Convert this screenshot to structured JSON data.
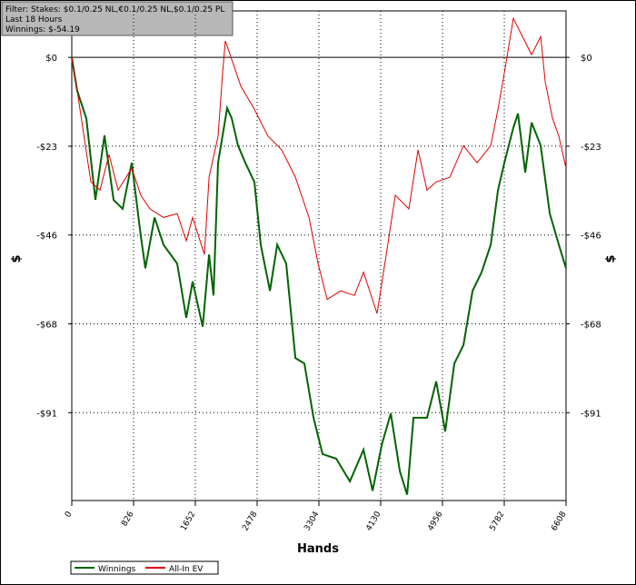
{
  "chart_data": {
    "type": "line",
    "annotations": [
      "Filter: Stakes: $0.1/0.25 NL,€0.1/0.25 NL,$0.1/0.25 PL",
      "Last  18 Hours",
      "Winnings: $-54.19"
    ],
    "xlabel": "Hands",
    "ylabel": "$",
    "xlim": [
      0,
      6608
    ],
    "xticks": [
      0,
      826,
      1652,
      2478,
      3304,
      4130,
      4956,
      5782,
      6608
    ],
    "ylim": [
      -113.5,
      11.9
    ],
    "yticks": [
      {
        "value": 0,
        "label": "$0"
      },
      {
        "value": -22.75,
        "label": "-$23"
      },
      {
        "value": -45.5,
        "label": "-$46"
      },
      {
        "value": -68.25,
        "label": "-$68"
      },
      {
        "value": -91,
        "label": "-$91"
      }
    ],
    "grid": true,
    "series": [
      {
        "name": "Winnings",
        "color": "#006400",
        "x": [
          0,
          73,
          194,
          316,
          437,
          559,
          680,
          802,
          923,
          984,
          1106,
          1227,
          1409,
          1531,
          1616,
          1750,
          1835,
          1895,
          1956,
          2077,
          2138,
          2223,
          2320,
          2442,
          2527,
          2649,
          2746,
          2867,
          2989,
          3110,
          3232,
          3353,
          3536,
          3718,
          3900,
          4022,
          4143,
          4265,
          4386,
          4483,
          4568,
          4750,
          4872,
          4993,
          5115,
          5236,
          5358,
          5479,
          5601,
          5698,
          5783,
          5904,
          5965,
          6063,
          6148,
          6269,
          6391,
          6512,
          6608
        ],
        "values": [
          0,
          -8.6,
          -15.6,
          -36.5,
          -20,
          -36.5,
          -38.8,
          -27,
          -45.8,
          -54,
          -41,
          -48,
          -52.8,
          -66.7,
          -57.4,
          -69,
          -50.5,
          -61,
          -27,
          -13,
          -15.6,
          -22.6,
          -27,
          -31.9,
          -48,
          -59.8,
          -48,
          -52.8,
          -77,
          -78.4,
          -92.3,
          -101.6,
          -102.8,
          -108.6,
          -100.5,
          -111,
          -99.3,
          -91.2,
          -106,
          -112,
          -92.3,
          -92.3,
          -83,
          -95.8,
          -78.4,
          -73.7,
          -59.8,
          -55,
          -48,
          -34,
          -27,
          -18,
          -14.4,
          -29.5,
          -16.7,
          -22.6,
          -40,
          -48,
          -54
        ]
      },
      {
        "name": "All-In EV",
        "color": "#e00000",
        "x": [
          0,
          73,
          255,
          377,
          498,
          620,
          802,
          923,
          1045,
          1227,
          1409,
          1531,
          1616,
          1774,
          1835,
          1956,
          2017,
          2053,
          2138,
          2260,
          2442,
          2624,
          2807,
          2989,
          3171,
          3293,
          3414,
          3596,
          3779,
          3900,
          4082,
          4204,
          4325,
          4507,
          4629,
          4750,
          4872,
          5054,
          5236,
          5419,
          5601,
          5698,
          5783,
          5904,
          6026,
          6148,
          6269,
          6330,
          6427,
          6512,
          6608
        ],
        "values": [
          0,
          -8.6,
          -31.9,
          -34,
          -24.9,
          -34,
          -28.4,
          -35.3,
          -38.8,
          -41,
          -40,
          -47,
          -41,
          -50.5,
          -30.7,
          -20.2,
          -4,
          4.2,
          -0.5,
          -7.4,
          -13.3,
          -20.2,
          -23.7,
          -30.7,
          -41,
          -52.8,
          -62,
          -59.8,
          -61,
          -55,
          -65.6,
          -50.5,
          -35.3,
          -38.8,
          -23.7,
          -34,
          -31.9,
          -30.7,
          -22.6,
          -27,
          -22.6,
          -13.3,
          -4,
          10,
          5.3,
          0.7,
          5.3,
          -6.3,
          -15.6,
          -20.2,
          -28.4
        ]
      }
    ]
  }
}
